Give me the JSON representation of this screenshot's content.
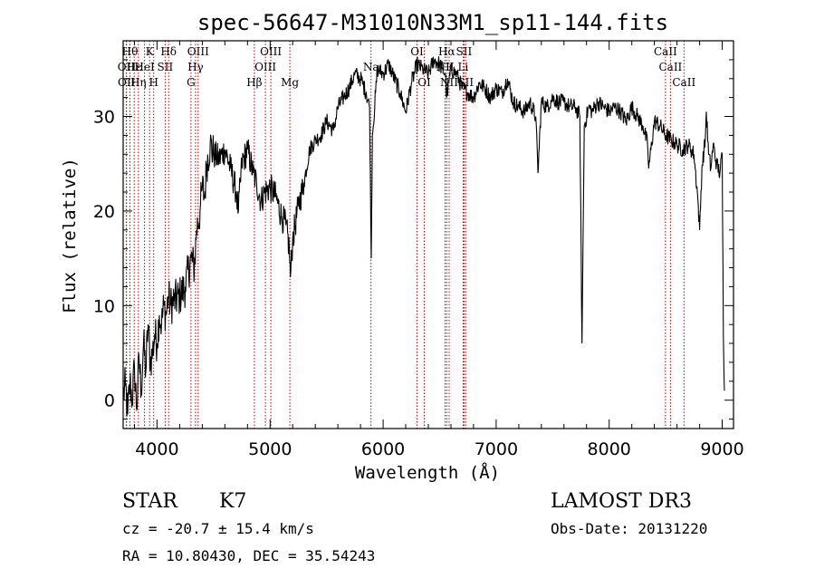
{
  "chart_data": {
    "type": "line",
    "title": "spec-56647-M31010N33M1_sp11-144.fits",
    "xlabel": "Wavelength (Å)",
    "ylabel": "Flux (relative)",
    "xlim": [
      3700,
      9100
    ],
    "ylim": [
      -3,
      38
    ],
    "xticks": [
      4000,
      5000,
      6000,
      7000,
      8000,
      9000
    ],
    "yticks": [
      0,
      10,
      20,
      30
    ],
    "x_tick_labels": [
      "4000",
      "5000",
      "6000",
      "7000",
      "8000",
      "9000"
    ],
    "y_tick_labels": [
      "0",
      "10",
      "20",
      "30"
    ],
    "series": [
      {
        "name": "spectrum",
        "points": [
          [
            3700,
            0.5
          ],
          [
            3720,
            1.5
          ],
          [
            3740,
            -1.5
          ],
          [
            3760,
            2.0
          ],
          [
            3780,
            0.0
          ],
          [
            3800,
            3.5
          ],
          [
            3820,
            -1.0
          ],
          [
            3840,
            4.5
          ],
          [
            3860,
            1.0
          ],
          [
            3880,
            6.0
          ],
          [
            3900,
            3.0
          ],
          [
            3920,
            8.0
          ],
          [
            3940,
            4.0
          ],
          [
            3960,
            5.0
          ],
          [
            3980,
            7.0
          ],
          [
            4000,
            6.0
          ],
          [
            4020,
            9.0
          ],
          [
            4040,
            8.0
          ],
          [
            4060,
            10.0
          ],
          [
            4080,
            9.0
          ],
          [
            4100,
            11.0
          ],
          [
            4120,
            10.0
          ],
          [
            4150,
            10.5
          ],
          [
            4200,
            11.0
          ],
          [
            4250,
            12.0
          ],
          [
            4300,
            15.0
          ],
          [
            4330,
            14.0
          ],
          [
            4350,
            18.0
          ],
          [
            4380,
            20.0
          ],
          [
            4400,
            22.5
          ],
          [
            4420,
            21.5
          ],
          [
            4440,
            25.0
          ],
          [
            4470,
            27.0
          ],
          [
            4500,
            26.0
          ],
          [
            4550,
            25.5
          ],
          [
            4600,
            26.5
          ],
          [
            4650,
            24.5
          ],
          [
            4700,
            22.0
          ],
          [
            4720,
            20.0
          ],
          [
            4750,
            25.0
          ],
          [
            4800,
            26.5
          ],
          [
            4850,
            24.0
          ],
          [
            4880,
            23.0
          ],
          [
            4920,
            21.0
          ],
          [
            4950,
            22.0
          ],
          [
            5000,
            22.5
          ],
          [
            5050,
            21.5
          ],
          [
            5100,
            19.5
          ],
          [
            5140,
            18.5
          ],
          [
            5170,
            16.0
          ],
          [
            5180,
            13.0
          ],
          [
            5200,
            17.0
          ],
          [
            5250,
            20.5
          ],
          [
            5300,
            23.0
          ],
          [
            5350,
            26.5
          ],
          [
            5400,
            27.5
          ],
          [
            5450,
            28.0
          ],
          [
            5500,
            29.5
          ],
          [
            5560,
            28.5
          ],
          [
            5600,
            31.0
          ],
          [
            5650,
            32.0
          ],
          [
            5700,
            33.0
          ],
          [
            5750,
            34.5
          ],
          [
            5800,
            34.0
          ],
          [
            5850,
            32.5
          ],
          [
            5880,
            31.0
          ],
          [
            5895,
            15.0
          ],
          [
            5905,
            28.0
          ],
          [
            5950,
            35.0
          ],
          [
            6000,
            34.5
          ],
          [
            6050,
            35.5
          ],
          [
            6100,
            34.0
          ],
          [
            6150,
            32.5
          ],
          [
            6200,
            30.5
          ],
          [
            6250,
            33.5
          ],
          [
            6300,
            35.5
          ],
          [
            6350,
            35.0
          ],
          [
            6400,
            34.5
          ],
          [
            6450,
            36.0
          ],
          [
            6500,
            35.5
          ],
          [
            6550,
            34.5
          ],
          [
            6563,
            32.0
          ],
          [
            6600,
            35.0
          ],
          [
            6650,
            34.5
          ],
          [
            6700,
            33.0
          ],
          [
            6750,
            32.5
          ],
          [
            6800,
            32.0
          ],
          [
            6850,
            33.5
          ],
          [
            6900,
            33.0
          ],
          [
            6950,
            32.0
          ],
          [
            7000,
            33.0
          ],
          [
            7050,
            32.5
          ],
          [
            7100,
            34.0
          ],
          [
            7150,
            31.5
          ],
          [
            7200,
            31.0
          ],
          [
            7250,
            30.5
          ],
          [
            7300,
            31.5
          ],
          [
            7350,
            30.0
          ],
          [
            7370,
            24.0
          ],
          [
            7400,
            31.5
          ],
          [
            7450,
            31.0
          ],
          [
            7500,
            32.0
          ],
          [
            7550,
            31.5
          ],
          [
            7600,
            31.5
          ],
          [
            7650,
            31.0
          ],
          [
            7700,
            31.0
          ],
          [
            7740,
            30.0
          ],
          [
            7760,
            6.0
          ],
          [
            7780,
            29.0
          ],
          [
            7820,
            31.0
          ],
          [
            7850,
            30.5
          ],
          [
            7900,
            31.5
          ],
          [
            7950,
            31.0
          ],
          [
            8000,
            30.5
          ],
          [
            8050,
            31.0
          ],
          [
            8100,
            30.5
          ],
          [
            8150,
            29.5
          ],
          [
            8200,
            31.0
          ],
          [
            8250,
            30.0
          ],
          [
            8300,
            29.0
          ],
          [
            8340,
            27.0
          ],
          [
            8350,
            24.5
          ],
          [
            8400,
            29.5
          ],
          [
            8450,
            29.0
          ],
          [
            8500,
            28.0
          ],
          [
            8550,
            27.5
          ],
          [
            8600,
            27.0
          ],
          [
            8650,
            26.5
          ],
          [
            8700,
            27.0
          ],
          [
            8750,
            26.0
          ],
          [
            8780,
            22.0
          ],
          [
            8800,
            18.0
          ],
          [
            8820,
            24.5
          ],
          [
            8850,
            27.5
          ],
          [
            8860,
            30.5
          ],
          [
            8880,
            26.0
          ],
          [
            8900,
            24.5
          ],
          [
            8920,
            27.0
          ],
          [
            8950,
            25.0
          ],
          [
            8980,
            24.0
          ],
          [
            9000,
            26.0
          ],
          [
            9010,
            7.0
          ],
          [
            9020,
            1.0
          ]
        ]
      }
    ],
    "line_markers": [
      {
        "wavelength": 3727,
        "label": "OII",
        "row": 1
      },
      {
        "wavelength": 3730,
        "label": "OII",
        "row": 2
      },
      {
        "wavelength": 3760,
        "label": "Hθ",
        "row": 0
      },
      {
        "wavelength": 3798,
        "label": "Hε",
        "row": 1
      },
      {
        "wavelength": 3835,
        "label": "Hη",
        "row": 2
      },
      {
        "wavelength": 3889,
        "label": "HeI",
        "row": 1
      },
      {
        "wavelength": 3934,
        "label": "K",
        "row": 0
      },
      {
        "wavelength": 3970,
        "label": "H",
        "row": 2
      },
      {
        "wavelength": 4072,
        "label": "SII",
        "row": 1
      },
      {
        "wavelength": 4102,
        "label": "Hδ",
        "row": 0
      },
      {
        "wavelength": 4300,
        "label": "G",
        "row": 2
      },
      {
        "wavelength": 4340,
        "label": "Hγ",
        "row": 1
      },
      {
        "wavelength": 4363,
        "label": "OIII",
        "row": 0
      },
      {
        "wavelength": 4861,
        "label": "Hβ",
        "row": 2
      },
      {
        "wavelength": 4959,
        "label": "OIII",
        "row": 1
      },
      {
        "wavelength": 5007,
        "label": "OIII",
        "row": 0
      },
      {
        "wavelength": 5175,
        "label": "Mg",
        "row": 2
      },
      {
        "wavelength": 5893,
        "label": "Na",
        "row": 1
      },
      {
        "wavelength": 6300,
        "label": "OI",
        "row": 0
      },
      {
        "wavelength": 6364,
        "label": "OI",
        "row": 2
      },
      {
        "wavelength": 6548,
        "label": "NII",
        "row": 1
      },
      {
        "wavelength": 6563,
        "label": "Hα",
        "row": 0
      },
      {
        "wavelength": 6584,
        "label": "NII",
        "row": 2
      },
      {
        "wavelength": 6708,
        "label": "Li",
        "row": 1
      },
      {
        "wavelength": 6716,
        "label": "SII",
        "row": 0
      },
      {
        "wavelength": 6731,
        "label": "SII",
        "row": 2
      },
      {
        "wavelength": 8498,
        "label": "CaII",
        "row": 0
      },
      {
        "wavelength": 8542,
        "label": "CaII",
        "row": 1
      },
      {
        "wavelength": 8662,
        "label": "CaII",
        "row": 2
      }
    ],
    "marker_color": "#c00000"
  },
  "info": {
    "class": "STAR",
    "subclass": "K7",
    "survey": "LAMOST DR3",
    "redshift": "cz = -20.7 ± 15.4 km/s",
    "obs_date": "Obs-Date: 20131220",
    "coords": "RA =  10.80430, DEC =  35.54243"
  }
}
